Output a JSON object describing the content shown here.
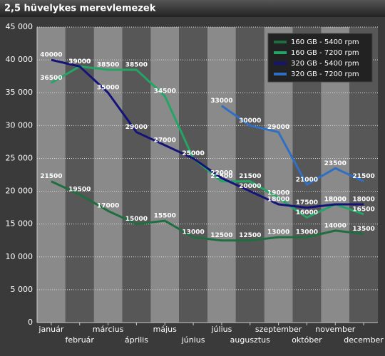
{
  "chart_data": {
    "type": "line",
    "title": "2,5 hüvelykes merevlemezek",
    "categories": [
      "január",
      "február",
      "március",
      "április",
      "május",
      "június",
      "július",
      "augusztus",
      "szeptember",
      "október",
      "november",
      "december"
    ],
    "series": [
      {
        "name": "160 GB - 5400 rpm",
        "color": "#1f6e40",
        "values": [
          21500,
          19500,
          17000,
          15000,
          15500,
          13000,
          12500,
          12500,
          13000,
          13000,
          14000,
          13500
        ]
      },
      {
        "name": "160 GB - 7200 rpm",
        "color": "#22a565",
        "values": [
          36500,
          39000,
          38500,
          38500,
          34500,
          25000,
          21500,
          21500,
          19000,
          16000,
          18000,
          16500
        ]
      },
      {
        "name": "320 GB - 5400 rpm",
        "color": "#13137a",
        "values": [
          40000,
          39000,
          35000,
          29000,
          27000,
          25000,
          22000,
          20000,
          18000,
          17500,
          18000,
          18000
        ]
      },
      {
        "name": "320 GB - 7200 rpm",
        "color": "#2f6fc4",
        "values": [
          null,
          null,
          null,
          null,
          null,
          null,
          33000,
          30000,
          29000,
          21000,
          23500,
          21500
        ]
      }
    ],
    "ylim": [
      0,
      45000
    ],
    "yticks": [
      0,
      {
        "value": 5000,
        "label": "5 000"
      },
      {
        "value": 10000,
        "label": "10 000"
      },
      {
        "value": 15000,
        "label": "15 000"
      },
      {
        "value": 20000,
        "label": "20 000"
      },
      {
        "value": 25000,
        "label": "25 000"
      },
      {
        "value": 30000,
        "label": "30 000"
      },
      {
        "value": 35000,
        "label": "35 000"
      },
      {
        "value": 40000,
        "label": "40 000"
      },
      {
        "value": 45000,
        "label": "45 000"
      }
    ],
    "grid": true,
    "legend": "top-right"
  }
}
